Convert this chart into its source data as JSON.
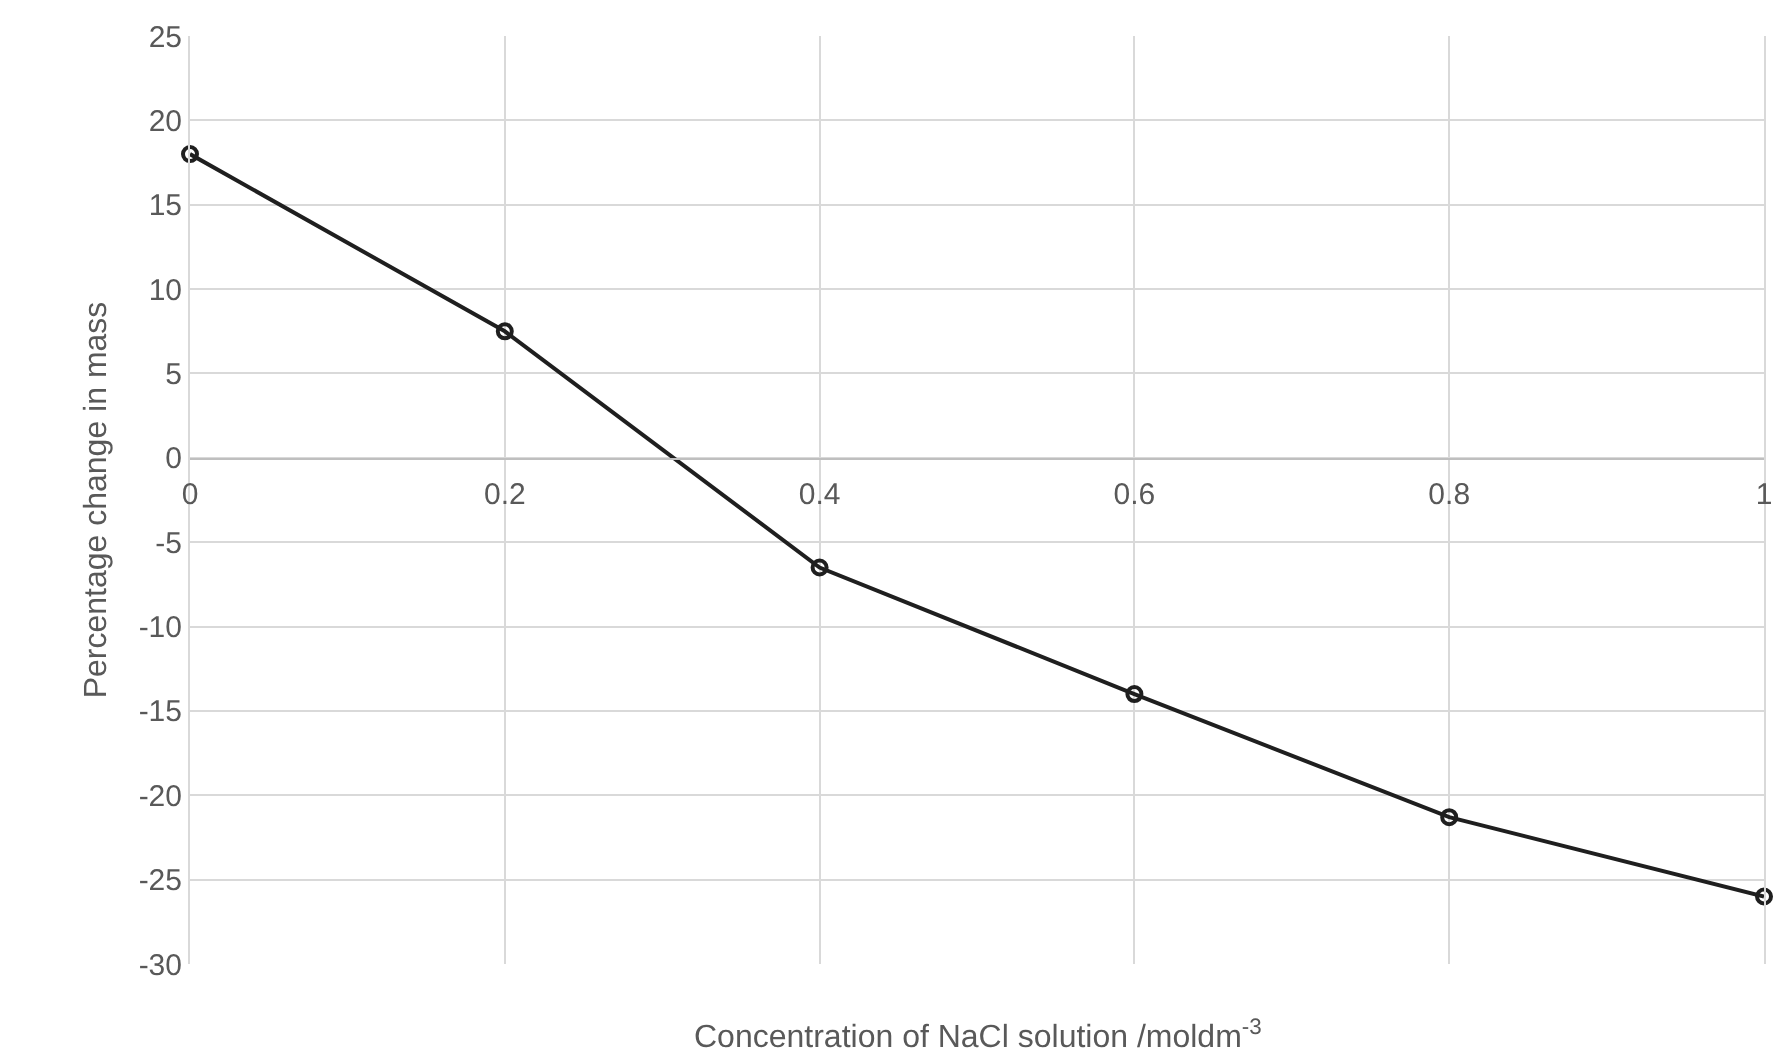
{
  "chart_data": {
    "type": "line",
    "xlabel": "Concentration of NaCl solution /moldm$^{-3}$",
    "ylabel": "Percentage change in mass",
    "x": [
      0,
      0.2,
      0.4,
      0.6,
      0.8,
      1
    ],
    "series": [
      {
        "color": "#1f1f1f",
        "values": [
          18,
          7.5,
          -6.5,
          -14,
          -21.3,
          -26
        ]
      }
    ],
    "xlim": [
      0,
      1
    ],
    "xticks": [
      0,
      0.2,
      0.4,
      0.6,
      0.8,
      1
    ],
    "ylim": [
      -30,
      25
    ],
    "yticks": [
      -30,
      -25,
      -20,
      -15,
      -10,
      -5,
      0,
      5,
      10,
      15,
      20,
      25
    ],
    "grid": true,
    "marker": "circle",
    "line_style": "solid"
  }
}
